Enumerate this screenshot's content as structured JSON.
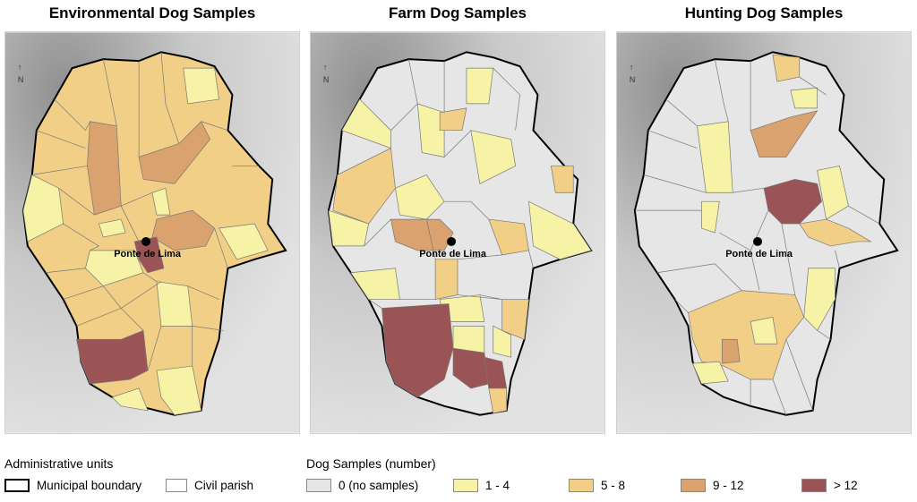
{
  "panels": [
    {
      "title": "Environmental Dog Samples",
      "city": "Ponte de Lima",
      "north": "N"
    },
    {
      "title": "Farm Dog Samples",
      "city": "Ponte de Lima",
      "north": "N"
    },
    {
      "title": "Hunting Dog Samples",
      "city": "Ponte de Lima",
      "north": "N"
    }
  ],
  "legend": {
    "admin_heading": "Administrative units",
    "municipal_boundary": "Municipal boundary",
    "civil_parish": "Civil parish",
    "samples_heading": "Dog Samples (number)",
    "classes": [
      {
        "label": "0 (no samples)",
        "color": "#e6e6e6"
      },
      {
        "label": "1 - 4",
        "color": "#f7f3a6"
      },
      {
        "label": "5 - 8",
        "color": "#f1cf87"
      },
      {
        "label": "9 - 12",
        "color": "#d9a26e"
      },
      {
        "label": "> 12",
        "color": "#9b5456"
      }
    ]
  }
}
